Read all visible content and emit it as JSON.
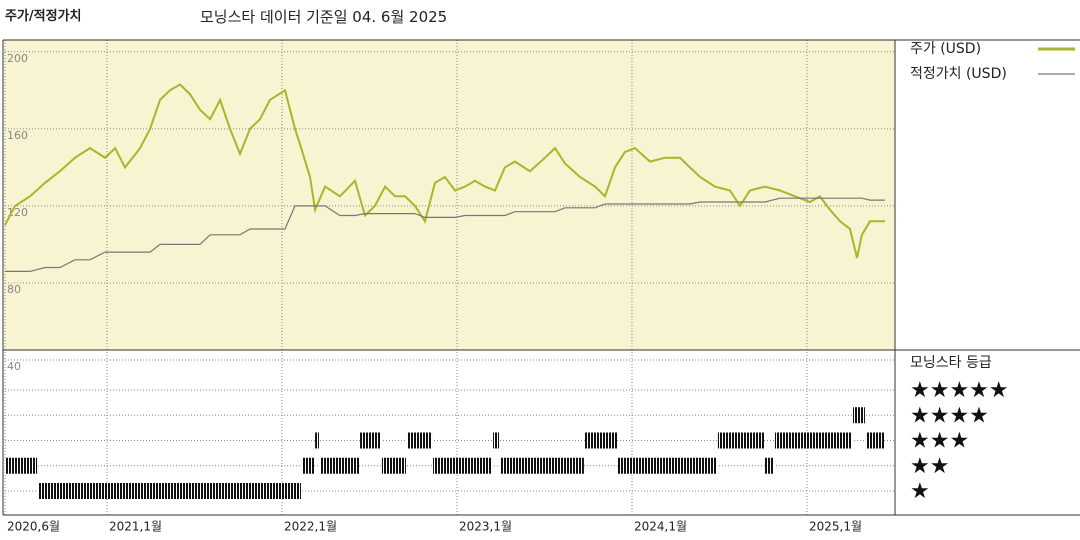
{
  "chart_data": [
    {
      "type": "line",
      "title": "주가/적정가치",
      "subtitle": "모닝스타 데이터 기준일 04. 6월 2025",
      "x": [
        2020.417,
        2020.474,
        2020.56,
        2020.646,
        2020.731,
        2020.817,
        2020.903,
        2020.989,
        2021.046,
        2021.103,
        2021.189,
        2021.246,
        2021.303,
        2021.36,
        2021.417,
        2021.474,
        2021.531,
        2021.589,
        2021.646,
        2021.703,
        2021.76,
        2021.817,
        2021.874,
        2021.931,
        2022.017,
        2022.074,
        2022.103,
        2022.16,
        2022.189,
        2022.246,
        2022.331,
        2022.417,
        2022.474,
        2022.531,
        2022.589,
        2022.646,
        2022.703,
        2022.76,
        2022.817,
        2022.874,
        2022.931,
        2022.989,
        2023.046,
        2023.103,
        2023.16,
        2023.217,
        2023.274,
        2023.331,
        2023.417,
        2023.503,
        2023.56,
        2023.617,
        2023.703,
        2023.789,
        2023.846,
        2023.903,
        2023.96,
        2024.017,
        2024.103,
        2024.189,
        2024.274,
        2024.331,
        2024.389,
        2024.474,
        2024.56,
        2024.617,
        2024.674,
        2024.76,
        2024.846,
        2024.931,
        2025.017,
        2025.074,
        2025.131,
        2025.189,
        2025.246,
        2025.286,
        2025.314,
        2025.36,
        2025.446
      ],
      "series": [
        {
          "name": "주가 (USD)",
          "color": "#a9b52a",
          "values": [
            110,
            120,
            125,
            132,
            138,
            145,
            150,
            145,
            150,
            140,
            150,
            160,
            175,
            180,
            183,
            178,
            170,
            165,
            175,
            160,
            147,
            160,
            165,
            175,
            180,
            160,
            152,
            135,
            118,
            130,
            125,
            133,
            115,
            120,
            130,
            125,
            125,
            120,
            112,
            132,
            135,
            128,
            130,
            133,
            130,
            128,
            140,
            143,
            138,
            145,
            150,
            142,
            135,
            130,
            125,
            140,
            148,
            150,
            143,
            145,
            145,
            140,
            135,
            130,
            128,
            120,
            128,
            130,
            128,
            125,
            122,
            125,
            118,
            112,
            108,
            93,
            105,
            112,
            112
          ]
        },
        {
          "name": "적정가치 (USD)",
          "color": "#777777",
          "values": [
            86,
            86,
            86,
            88,
            88,
            92,
            92,
            96,
            96,
            96,
            96,
            96,
            100,
            100,
            100,
            100,
            100,
            105,
            105,
            105,
            105,
            108,
            108,
            108,
            108,
            120,
            120,
            120,
            120,
            120,
            115,
            115,
            116,
            116,
            116,
            116,
            116,
            116,
            114,
            114,
            114,
            114,
            115,
            115,
            115,
            115,
            115,
            117,
            117,
            117,
            117,
            119,
            119,
            119,
            121,
            121,
            121,
            121,
            121,
            121,
            121,
            121,
            122,
            122,
            122,
            122,
            122,
            122,
            124,
            124,
            124,
            124,
            124,
            124,
            124,
            124,
            124,
            123,
            123
          ]
        }
      ],
      "xlim": [
        2020.417,
        2025.503
      ],
      "xticks": [
        {
          "value": 2020.417,
          "label": "2020,6월"
        },
        {
          "value": 2021,
          "label": "2021,1월"
        },
        {
          "value": 2022,
          "label": "2022,1월"
        },
        {
          "value": 2023,
          "label": "2023,1월"
        },
        {
          "value": 2024,
          "label": "2024,1월"
        },
        {
          "value": 2025,
          "label": "2025,1월"
        }
      ],
      "ylim": [
        40,
        203
      ],
      "yticks": [
        40,
        80,
        120,
        160,
        200
      ],
      "grid": true
    },
    {
      "type": "rating",
      "title": "모닝스타 등급",
      "xlim": [
        2020.417,
        2025.503
      ],
      "ylim": [
        1,
        5
      ],
      "yticks": [
        {
          "value": 5,
          "label": "★★★★★"
        },
        {
          "value": 4,
          "label": "★★★★"
        },
        {
          "value": 3,
          "label": "★★★"
        },
        {
          "value": 2,
          "label": "★★"
        },
        {
          "value": 1,
          "label": "★"
        }
      ],
      "segments": [
        {
          "start": 2020.417,
          "end": 2020.606,
          "rating": 2
        },
        {
          "start": 2020.606,
          "end": 2022.114,
          "rating": 1
        },
        {
          "start": 2022.114,
          "end": 2022.189,
          "rating": 2
        },
        {
          "start": 2022.189,
          "end": 2022.217,
          "rating": 3
        },
        {
          "start": 2022.217,
          "end": 2022.446,
          "rating": 2
        },
        {
          "start": 2022.446,
          "end": 2022.571,
          "rating": 3
        },
        {
          "start": 2022.571,
          "end": 2022.714,
          "rating": 2
        },
        {
          "start": 2022.714,
          "end": 2022.863,
          "rating": 3
        },
        {
          "start": 2022.863,
          "end": 2023.206,
          "rating": 2
        },
        {
          "start": 2023.206,
          "end": 2023.246,
          "rating": 3
        },
        {
          "start": 2023.246,
          "end": 2023.731,
          "rating": 2
        },
        {
          "start": 2023.731,
          "end": 2023.92,
          "rating": 3
        },
        {
          "start": 2023.92,
          "end": 2024.491,
          "rating": 2
        },
        {
          "start": 2024.491,
          "end": 2024.76,
          "rating": 3
        },
        {
          "start": 2024.76,
          "end": 2024.817,
          "rating": 2
        },
        {
          "start": 2024.817,
          "end": 2025.263,
          "rating": 3
        },
        {
          "start": 2025.263,
          "end": 2025.337,
          "rating": 4
        },
        {
          "start": 2025.337,
          "end": 2025.446,
          "rating": 3
        }
      ]
    }
  ]
}
